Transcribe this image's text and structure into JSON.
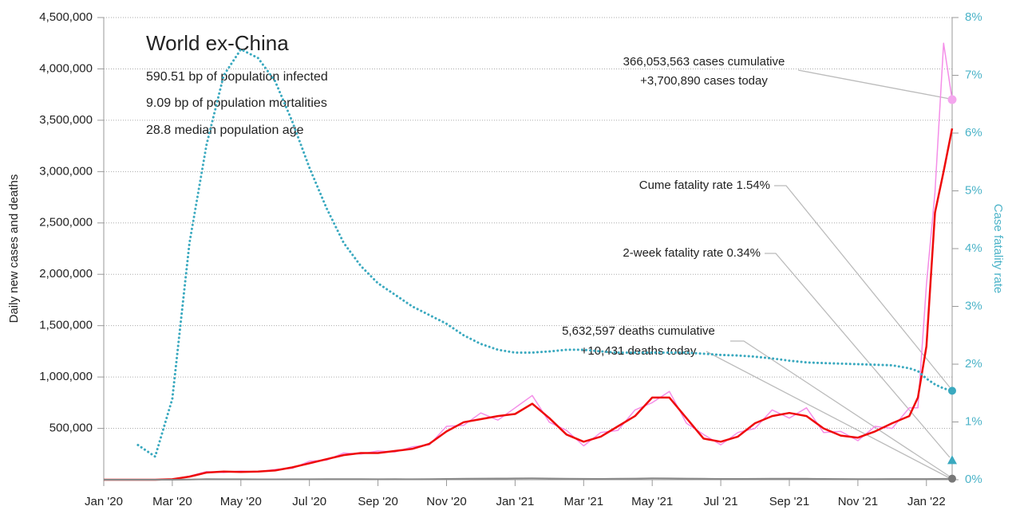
{
  "chart_data": {
    "type": "line",
    "info": {
      "title": "World ex-China",
      "lines": [
        "590.51 bp of population infected",
        "9.09 bp of population mortalities",
        "28.8 median population age"
      ]
    },
    "ylabel": "Daily new cases and deaths",
    "y2label": "Case fatality rate",
    "annotations": [
      "366,053,563 cases cumulative",
      "+3,700,890 cases today",
      "Cume fatality rate 1.54%",
      "2-week fatality rate 0.34%",
      "5,632,597 deaths cumulative",
      "+10,431 deaths today"
    ],
    "xlim": [
      0,
      24.75
    ],
    "xticks": [
      {
        "value": 0,
        "label": "Jan '20"
      },
      {
        "value": 2,
        "label": "Mar '20"
      },
      {
        "value": 4,
        "label": "May '20"
      },
      {
        "value": 6,
        "label": "Jul '20"
      },
      {
        "value": 8,
        "label": "Sep '20"
      },
      {
        "value": 10,
        "label": "Nov '20"
      },
      {
        "value": 12,
        "label": "Jan '21"
      },
      {
        "value": 14,
        "label": "Mar '21"
      },
      {
        "value": 16,
        "label": "May '21"
      },
      {
        "value": 18,
        "label": "Jul '21"
      },
      {
        "value": 20,
        "label": "Sep '21"
      },
      {
        "value": 22,
        "label": "Nov '21"
      },
      {
        "value": 24,
        "label": "Jan '22"
      }
    ],
    "ylim": [
      0,
      4500000
    ],
    "yticks": [
      {
        "value": 500000,
        "label": "500,000"
      },
      {
        "value": 1000000,
        "label": "1,000,000"
      },
      {
        "value": 1500000,
        "label": "1,500,000"
      },
      {
        "value": 2000000,
        "label": "2,000,000"
      },
      {
        "value": 2500000,
        "label": "2,500,000"
      },
      {
        "value": 3000000,
        "label": "3,000,000"
      },
      {
        "value": 3500000,
        "label": "3,500,000"
      },
      {
        "value": 4000000,
        "label": "4,000,000"
      },
      {
        "value": 4500000,
        "label": "4,500,000"
      }
    ],
    "y2lim": [
      0,
      8
    ],
    "y2ticks": [
      {
        "value": 0,
        "label": "0%"
      },
      {
        "value": 1,
        "label": "1%"
      },
      {
        "value": 2,
        "label": "2%"
      },
      {
        "value": 3,
        "label": "3%"
      },
      {
        "value": 4,
        "label": "4%"
      },
      {
        "value": 5,
        "label": "5%"
      },
      {
        "value": 6,
        "label": "6%"
      },
      {
        "value": 7,
        "label": "7%"
      },
      {
        "value": 8,
        "label": "8%"
      }
    ],
    "grid": true,
    "x": [
      0,
      0.5,
      1,
      1.5,
      2,
      2.5,
      3,
      3.5,
      4,
      4.5,
      5,
      5.5,
      6,
      6.5,
      7,
      7.5,
      8,
      8.5,
      9,
      9.5,
      10,
      10.5,
      11,
      11.5,
      12,
      12.5,
      13,
      13.5,
      14,
      14.5,
      15,
      15.5,
      16,
      16.5,
      17,
      17.5,
      18,
      18.5,
      19,
      19.5,
      20,
      20.5,
      21,
      21.5,
      22,
      22.5,
      23,
      23.5,
      23.75,
      24,
      24.25,
      24.5,
      24.75
    ],
    "series": [
      {
        "color": "#f48ee8",
        "width": 1.5,
        "axis": "y",
        "values": [
          0,
          0,
          0,
          0,
          6000,
          35000,
          80000,
          70000,
          85000,
          75000,
          100000,
          110000,
          180000,
          190000,
          260000,
          250000,
          280000,
          270000,
          320000,
          340000,
          520000,
          530000,
          650000,
          580000,
          700000,
          820000,
          560000,
          480000,
          330000,
          460000,
          480000,
          680000,
          750000,
          860000,
          550000,
          440000,
          340000,
          460000,
          500000,
          680000,
          600000,
          700000,
          460000,
          470000,
          380000,
          520000,
          500000,
          700000,
          700000,
          1900000,
          2800000,
          4250000,
          3700890
        ]
      },
      {
        "color": "#ee0a0a",
        "width": 2.5,
        "axis": "y",
        "values": [
          0,
          0,
          0,
          0,
          5000,
          30000,
          70000,
          80000,
          75000,
          80000,
          90000,
          120000,
          160000,
          200000,
          240000,
          260000,
          260000,
          280000,
          300000,
          350000,
          470000,
          560000,
          590000,
          620000,
          640000,
          740000,
          600000,
          440000,
          370000,
          420000,
          520000,
          620000,
          800000,
          800000,
          600000,
          400000,
          370000,
          420000,
          550000,
          620000,
          650000,
          620000,
          500000,
          430000,
          410000,
          470000,
          550000,
          620000,
          800000,
          1300000,
          2600000,
          3000000,
          3420000
        ]
      },
      {
        "color": "#888888",
        "width": 2,
        "axis": "y",
        "values": [
          0,
          0,
          0,
          0,
          100,
          2000,
          5500,
          5000,
          4500,
          4000,
          4200,
          4500,
          5000,
          5500,
          5800,
          5500,
          5000,
          5200,
          5000,
          5300,
          7500,
          9000,
          10500,
          11500,
          12500,
          13000,
          12000,
          10000,
          8500,
          8000,
          9000,
          11000,
          13000,
          12500,
          10500,
          9000,
          8000,
          8000,
          8500,
          9000,
          9500,
          9000,
          7500,
          7000,
          6500,
          6500,
          7000,
          7200,
          7000,
          7200,
          7500,
          8500,
          10431
        ]
      },
      {
        "color": "#3aa9bf",
        "width": 3,
        "dotted": true,
        "axis": "y2",
        "values": [
          null,
          null,
          0.6,
          0.4,
          1.4,
          4.1,
          5.8,
          7.0,
          7.45,
          7.3,
          6.9,
          6.2,
          5.4,
          4.7,
          4.1,
          3.7,
          3.4,
          3.2,
          3.0,
          2.85,
          2.7,
          2.5,
          2.35,
          2.25,
          2.2,
          2.2,
          2.22,
          2.25,
          2.25,
          2.22,
          2.2,
          2.2,
          2.2,
          2.2,
          2.2,
          2.18,
          2.16,
          2.15,
          2.13,
          2.1,
          2.06,
          2.03,
          2.02,
          2.01,
          2.0,
          1.99,
          1.98,
          1.93,
          1.88,
          1.75,
          1.65,
          1.58,
          1.54
        ]
      }
    ],
    "markers": {
      "cases": 3700890,
      "cfr": 1.54,
      "two_week_cfr": 0.34,
      "deaths": 10431
    }
  }
}
